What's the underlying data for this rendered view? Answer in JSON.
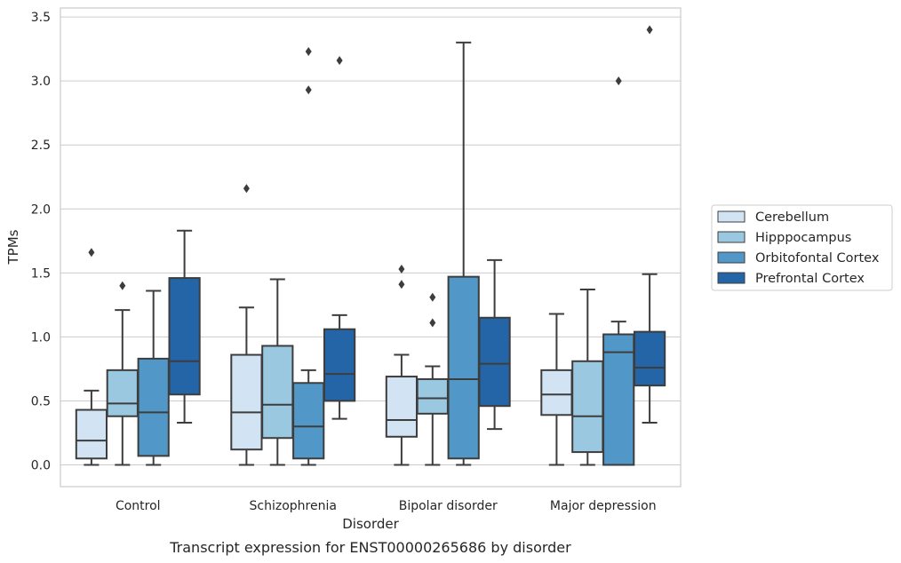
{
  "chart_data": {
    "type": "box",
    "title": "",
    "caption": "Transcript expression for ENST00000265686 by disorder",
    "xlabel": "Disorder",
    "ylabel": "TPMs",
    "ylim": [
      -0.17,
      3.57
    ],
    "yticks": [
      0.0,
      0.5,
      1.0,
      1.5,
      2.0,
      2.5,
      3.0,
      3.5
    ],
    "ytick_labels": [
      "0.0",
      "0.5",
      "1.0",
      "1.5",
      "2.0",
      "2.5",
      "3.0",
      "3.5"
    ],
    "grid": true,
    "legend_position": "outside-right",
    "categories": [
      "Control",
      "Schizophrenia",
      "Bipolar disorder",
      "Major depression"
    ],
    "series": [
      {
        "name": "Cerebellum",
        "color": "#d2e3f3",
        "boxes": [
          {
            "whislo": 0.0,
            "q1": 0.05,
            "med": 0.19,
            "q3": 0.43,
            "whishi": 0.58,
            "fliers": [
              1.66
            ]
          },
          {
            "whislo": 0.0,
            "q1": 0.12,
            "med": 0.41,
            "q3": 0.86,
            "whishi": 1.23,
            "fliers": [
              2.16
            ]
          },
          {
            "whislo": 0.0,
            "q1": 0.22,
            "med": 0.35,
            "q3": 0.69,
            "whishi": 0.86,
            "fliers": [
              1.41,
              1.53
            ]
          },
          {
            "whislo": 0.0,
            "q1": 0.39,
            "med": 0.55,
            "q3": 0.74,
            "whishi": 1.18,
            "fliers": []
          }
        ]
      },
      {
        "name": "Hipppocampus",
        "color": "#9ac8e0",
        "boxes": [
          {
            "whislo": 0.0,
            "q1": 0.38,
            "med": 0.48,
            "q3": 0.74,
            "whishi": 1.21,
            "fliers": [
              1.4
            ]
          },
          {
            "whislo": 0.0,
            "q1": 0.21,
            "med": 0.47,
            "q3": 0.93,
            "whishi": 1.45,
            "fliers": []
          },
          {
            "whislo": 0.0,
            "q1": 0.4,
            "med": 0.52,
            "q3": 0.67,
            "whishi": 0.77,
            "fliers": [
              1.11,
              1.31
            ]
          },
          {
            "whislo": 0.0,
            "q1": 0.1,
            "med": 0.38,
            "q3": 0.81,
            "whishi": 1.37,
            "fliers": []
          }
        ]
      },
      {
        "name": "Orbitofontal Cortex",
        "color": "#5198c8",
        "boxes": [
          {
            "whislo": 0.0,
            "q1": 0.07,
            "med": 0.41,
            "q3": 0.83,
            "whishi": 1.36,
            "fliers": []
          },
          {
            "whislo": 0.0,
            "q1": 0.05,
            "med": 0.3,
            "q3": 0.64,
            "whishi": 0.74,
            "fliers": [
              2.93,
              3.23
            ]
          },
          {
            "whislo": 0.0,
            "q1": 0.05,
            "med": 0.67,
            "q3": 1.47,
            "whishi": 3.3,
            "fliers": []
          },
          {
            "whislo": 0.0,
            "q1": 0.0,
            "med": 0.88,
            "q3": 1.02,
            "whishi": 1.12,
            "fliers": [
              3.0
            ]
          }
        ]
      },
      {
        "name": "Prefrontal Cortex",
        "color": "#2465a8",
        "boxes": [
          {
            "whislo": 0.33,
            "q1": 0.55,
            "med": 0.81,
            "q3": 1.46,
            "whishi": 1.83,
            "fliers": []
          },
          {
            "whislo": 0.36,
            "q1": 0.5,
            "med": 0.71,
            "q3": 1.06,
            "whishi": 1.17,
            "fliers": [
              3.16
            ]
          },
          {
            "whislo": 0.28,
            "q1": 0.46,
            "med": 0.79,
            "q3": 1.15,
            "whishi": 1.6,
            "fliers": []
          },
          {
            "whislo": 0.33,
            "q1": 0.62,
            "med": 0.76,
            "q3": 1.04,
            "whishi": 1.49,
            "fliers": [
              3.4
            ]
          }
        ]
      }
    ]
  }
}
